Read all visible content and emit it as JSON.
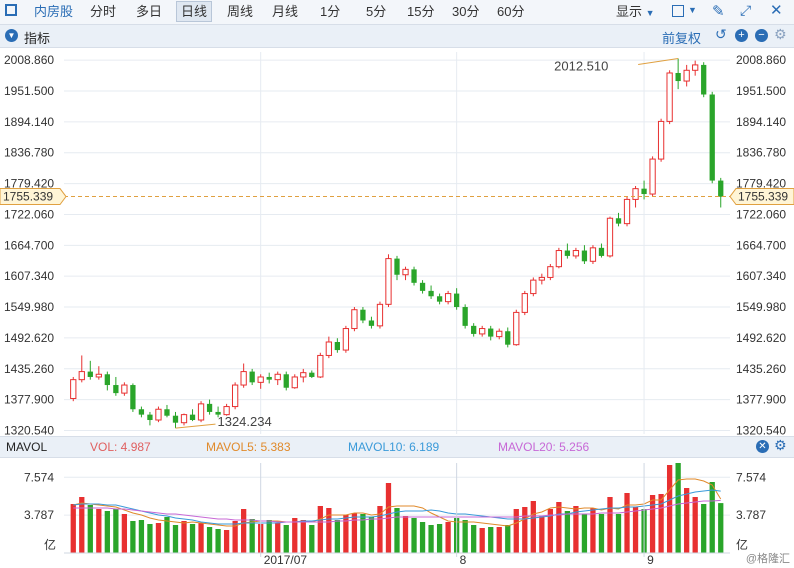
{
  "toolbar": {
    "stock_label": "内房股",
    "periods": [
      "分时",
      "多日",
      "日线",
      "周线",
      "月线",
      "1分",
      "5分",
      "15分",
      "30分",
      "60分"
    ],
    "active_period": "日线",
    "display_label": "显示",
    "display_icon": "chevron-down-icon",
    "tool_icons": [
      "square-icon",
      "pencil-icon",
      "expand-icon",
      "close-icon"
    ]
  },
  "indicator": {
    "label": "指标",
    "adjust_label": "前复权",
    "icons": [
      "undo-icon",
      "plus-icon",
      "minus-icon",
      "gear-icon"
    ]
  },
  "volume": {
    "label": "MAVOL",
    "items": [
      {
        "label": "VOL: 4.987",
        "color": "#e06060"
      },
      {
        "label": "MAVOL5: 5.383",
        "color": "#e08a2b"
      },
      {
        "label": "MAVOL10: 6.189",
        "color": "#3a9ad9"
      },
      {
        "label": "MAVOL20: 5.256",
        "color": "#c768d6"
      }
    ],
    "unit": "亿"
  },
  "watermark": "@格隆汇",
  "chart_data": [
    {
      "type": "candlestick",
      "price_ticks": [
        "2008.860",
        "1951.500",
        "1894.140",
        "1836.780",
        "1779.420",
        "1722.060",
        "1664.700",
        "1607.340",
        "1549.980",
        "1492.620",
        "1435.260",
        "1377.900",
        "1320.540"
      ],
      "price_tick_values": [
        2008.86,
        1951.5,
        1894.14,
        1836.78,
        1779.42,
        1722.06,
        1664.7,
        1607.34,
        1549.98,
        1492.62,
        1435.26,
        1377.9,
        1320.54
      ],
      "ylim": [
        1314,
        2024
      ],
      "current_price": "1755.339",
      "max_label": "2012.510",
      "min_label": "1324.234",
      "x_labels": [
        {
          "label": "2017/07",
          "index": 22
        },
        {
          "label": "8",
          "index": 45
        },
        {
          "label": "9",
          "index": 67
        }
      ],
      "colors": {
        "up": "#e83030",
        "down": "#2aa52a"
      },
      "ohlc": [
        [
          1380,
          1420,
          1375,
          1415
        ],
        [
          1415,
          1460,
          1410,
          1430
        ],
        [
          1430,
          1450,
          1415,
          1420
        ],
        [
          1420,
          1440,
          1415,
          1425
        ],
        [
          1425,
          1430,
          1395,
          1405
        ],
        [
          1405,
          1420,
          1385,
          1390
        ],
        [
          1390,
          1410,
          1385,
          1405
        ],
        [
          1405,
          1408,
          1355,
          1360
        ],
        [
          1360,
          1365,
          1345,
          1350
        ],
        [
          1350,
          1355,
          1330,
          1340
        ],
        [
          1340,
          1365,
          1336,
          1360
        ],
        [
          1360,
          1368,
          1345,
          1348
        ],
        [
          1348,
          1355,
          1325,
          1335
        ],
        [
          1335,
          1352,
          1330,
          1350
        ],
        [
          1350,
          1360,
          1338,
          1340
        ],
        [
          1340,
          1375,
          1336,
          1370
        ],
        [
          1370,
          1378,
          1350,
          1355
        ],
        [
          1355,
          1365,
          1345,
          1350
        ],
        [
          1350,
          1370,
          1348,
          1365
        ],
        [
          1365,
          1410,
          1360,
          1405
        ],
        [
          1405,
          1445,
          1400,
          1430
        ],
        [
          1430,
          1435,
          1405,
          1410
        ],
        [
          1410,
          1425,
          1398,
          1420
        ],
        [
          1420,
          1428,
          1408,
          1415
        ],
        [
          1415,
          1430,
          1405,
          1425
        ],
        [
          1425,
          1430,
          1395,
          1400
        ],
        [
          1400,
          1425,
          1398,
          1420
        ],
        [
          1420,
          1435,
          1410,
          1428
        ],
        [
          1428,
          1432,
          1418,
          1420
        ],
        [
          1420,
          1465,
          1418,
          1460
        ],
        [
          1460,
          1495,
          1455,
          1485
        ],
        [
          1485,
          1492,
          1465,
          1470
        ],
        [
          1470,
          1515,
          1465,
          1510
        ],
        [
          1510,
          1550,
          1505,
          1545
        ],
        [
          1545,
          1550,
          1520,
          1525
        ],
        [
          1525,
          1532,
          1510,
          1515
        ],
        [
          1515,
          1560,
          1510,
          1555
        ],
        [
          1555,
          1648,
          1550,
          1640
        ],
        [
          1640,
          1645,
          1600,
          1610
        ],
        [
          1610,
          1625,
          1600,
          1620
        ],
        [
          1620,
          1625,
          1590,
          1595
        ],
        [
          1595,
          1600,
          1575,
          1580
        ],
        [
          1580,
          1590,
          1565,
          1570
        ],
        [
          1570,
          1575,
          1555,
          1560
        ],
        [
          1560,
          1580,
          1555,
          1575
        ],
        [
          1575,
          1585,
          1545,
          1550
        ],
        [
          1550,
          1555,
          1510,
          1515
        ],
        [
          1515,
          1520,
          1495,
          1500
        ],
        [
          1500,
          1515,
          1495,
          1510
        ],
        [
          1510,
          1515,
          1488,
          1495
        ],
        [
          1495,
          1510,
          1490,
          1505
        ],
        [
          1505,
          1512,
          1475,
          1480
        ],
        [
          1480,
          1545,
          1478,
          1540
        ],
        [
          1540,
          1580,
          1535,
          1575
        ],
        [
          1575,
          1605,
          1570,
          1600
        ],
        [
          1600,
          1612,
          1592,
          1605
        ],
        [
          1605,
          1630,
          1600,
          1625
        ],
        [
          1625,
          1660,
          1622,
          1655
        ],
        [
          1655,
          1668,
          1640,
          1645
        ],
        [
          1645,
          1660,
          1640,
          1655
        ],
        [
          1655,
          1665,
          1630,
          1635
        ],
        [
          1635,
          1665,
          1630,
          1660
        ],
        [
          1660,
          1668,
          1642,
          1645
        ],
        [
          1645,
          1718,
          1642,
          1715
        ],
        [
          1715,
          1725,
          1700,
          1705
        ],
        [
          1705,
          1755,
          1700,
          1750
        ],
        [
          1750,
          1775,
          1735,
          1770
        ],
        [
          1770,
          1785,
          1750,
          1760
        ],
        [
          1760,
          1830,
          1755,
          1825
        ],
        [
          1825,
          1900,
          1820,
          1895
        ],
        [
          1895,
          1990,
          1890,
          1985
        ],
        [
          1985,
          2012,
          1955,
          1970
        ],
        [
          1970,
          2000,
          1960,
          1990
        ],
        [
          1990,
          2008,
          1980,
          2000
        ],
        [
          2000,
          2005,
          1940,
          1945
        ],
        [
          1945,
          1950,
          1780,
          1785
        ],
        [
          1785,
          1790,
          1735,
          1755
        ]
      ]
    },
    {
      "type": "bar",
      "y_ticks": [
        "7.574",
        "3.787"
      ],
      "y_tick_values": [
        7.574,
        3.787
      ],
      "ylim": [
        0,
        9.0
      ],
      "values": [
        4.9,
        5.6,
        4.8,
        4.4,
        4.2,
        4.4,
        3.9,
        3.2,
        3.3,
        2.9,
        3.0,
        3.6,
        2.8,
        3.2,
        2.9,
        3.0,
        2.6,
        2.4,
        2.3,
        3.2,
        4.4,
        3.4,
        2.9,
        3.3,
        3.0,
        2.8,
        3.5,
        3.3,
        2.8,
        4.7,
        4.5,
        3.3,
        3.8,
        4.0,
        3.9,
        3.6,
        4.7,
        7.0,
        4.5,
        3.7,
        3.5,
        3.1,
        2.8,
        2.9,
        3.1,
        3.5,
        3.3,
        2.8,
        2.5,
        2.6,
        2.6,
        2.8,
        4.4,
        4.6,
        5.2,
        3.7,
        4.4,
        5.1,
        4.2,
        4.7,
        3.9,
        4.5,
        3.9,
        5.6,
        3.9,
        6.0,
        4.6,
        4.4,
        5.8,
        5.9,
        8.8,
        9.0,
        6.5,
        5.6,
        4.9,
        7.1,
        4.99
      ],
      "ma_series": [
        {
          "name": "MAVOL5",
          "color": "#e08a2b",
          "values": [
            4.8,
            5.0,
            4.9,
            4.8,
            4.7,
            4.6,
            4.3,
            4.0,
            3.8,
            3.5,
            3.3,
            3.2,
            3.1,
            3.0,
            3.1,
            3.0,
            2.9,
            2.8,
            2.7,
            2.7,
            3.0,
            3.1,
            3.2,
            3.2,
            3.2,
            3.1,
            3.1,
            3.2,
            3.1,
            3.4,
            3.8,
            3.8,
            3.8,
            4.0,
            4.0,
            3.8,
            3.9,
            4.6,
            4.7,
            4.7,
            4.7,
            4.5,
            4.0,
            3.6,
            3.2,
            3.1,
            3.1,
            3.1,
            3.0,
            2.9,
            2.8,
            2.7,
            3.0,
            3.4,
            3.9,
            4.1,
            4.5,
            4.6,
            4.5,
            4.4,
            4.5,
            4.5,
            4.3,
            4.5,
            4.4,
            4.8,
            4.8,
            4.9,
            5.3,
            5.3,
            6.3,
            7.3,
            7.4,
            7.4,
            7.2,
            6.8,
            5.4
          ]
        },
        {
          "name": "MAVOL10",
          "color": "#3a9ad9",
          "values": [
            4.8,
            4.9,
            4.9,
            4.9,
            4.8,
            4.8,
            4.6,
            4.4,
            4.2,
            4.0,
            3.8,
            3.7,
            3.5,
            3.4,
            3.3,
            3.1,
            3.0,
            2.9,
            2.9,
            2.9,
            3.0,
            3.0,
            3.0,
            3.0,
            3.0,
            3.1,
            3.1,
            3.2,
            3.2,
            3.3,
            3.4,
            3.4,
            3.5,
            3.6,
            3.6,
            3.6,
            3.7,
            3.9,
            4.1,
            4.2,
            4.2,
            4.2,
            4.3,
            4.2,
            4.0,
            3.9,
            3.9,
            3.8,
            3.7,
            3.6,
            3.5,
            3.4,
            3.4,
            3.4,
            3.5,
            3.6,
            3.7,
            3.9,
            3.9,
            4.1,
            4.2,
            4.3,
            4.4,
            4.5,
            4.5,
            4.6,
            4.6,
            4.7,
            4.8,
            4.9,
            5.3,
            5.7,
            5.9,
            6.1,
            6.2,
            6.3,
            6.19
          ]
        },
        {
          "name": "MAVOL20",
          "color": "#c768d6",
          "values": [
            4.5,
            4.5,
            4.5,
            4.5,
            4.5,
            4.4,
            4.4,
            4.3,
            4.2,
            4.1,
            4.0,
            3.9,
            3.9,
            3.8,
            3.7,
            3.6,
            3.5,
            3.4,
            3.4,
            3.3,
            3.3,
            3.3,
            3.2,
            3.2,
            3.1,
            3.1,
            3.1,
            3.1,
            3.1,
            3.1,
            3.1,
            3.2,
            3.2,
            3.3,
            3.3,
            3.4,
            3.4,
            3.5,
            3.6,
            3.6,
            3.6,
            3.6,
            3.6,
            3.6,
            3.6,
            3.6,
            3.6,
            3.6,
            3.6,
            3.6,
            3.6,
            3.6,
            3.6,
            3.7,
            3.7,
            3.7,
            3.8,
            3.8,
            3.9,
            3.9,
            3.9,
            3.9,
            4.0,
            4.0,
            4.0,
            4.1,
            4.2,
            4.3,
            4.4,
            4.5,
            4.7,
            4.9,
            5.0,
            5.1,
            5.2,
            5.2,
            5.256
          ]
        }
      ]
    }
  ]
}
